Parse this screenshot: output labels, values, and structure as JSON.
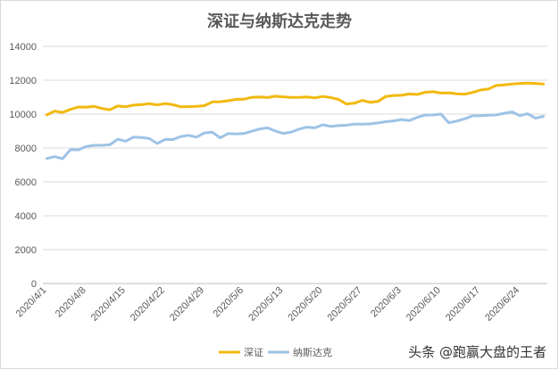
{
  "watermark": "头条 @跑赢大盘的王者",
  "chart_data": {
    "type": "line",
    "title": "深证与纳斯达克走势",
    "xlabel": "",
    "ylabel": "",
    "ylim": [
      0,
      14000
    ],
    "yticks": [
      0,
      2000,
      4000,
      6000,
      8000,
      10000,
      12000,
      14000
    ],
    "grid": true,
    "legend_position": "bottom",
    "x_tick_labels": [
      "2020/4/1",
      "2020/4/8",
      "2020/4/15",
      "2020/4/22",
      "2020/4/29",
      "2020/5/6",
      "2020/5/13",
      "2020/5/20",
      "2020/5/27",
      "2020/6/3",
      "2020/6/10",
      "2020/6/17",
      "2020/6/24"
    ],
    "x": [
      "2020/4/1",
      "2020/4/2",
      "2020/4/3",
      "2020/4/6",
      "2020/4/7",
      "2020/4/8",
      "2020/4/9",
      "2020/4/10",
      "2020/4/13",
      "2020/4/14",
      "2020/4/15",
      "2020/4/16",
      "2020/4/17",
      "2020/4/20",
      "2020/4/21",
      "2020/4/22",
      "2020/4/23",
      "2020/4/24",
      "2020/4/27",
      "2020/4/28",
      "2020/4/29",
      "2020/4/30",
      "2020/5/1",
      "2020/5/4",
      "2020/5/5",
      "2020/5/6",
      "2020/5/7",
      "2020/5/8",
      "2020/5/11",
      "2020/5/12",
      "2020/5/13",
      "2020/5/14",
      "2020/5/15",
      "2020/5/18",
      "2020/5/19",
      "2020/5/20",
      "2020/5/21",
      "2020/5/22",
      "2020/5/25",
      "2020/5/26",
      "2020/5/27",
      "2020/5/28",
      "2020/5/29",
      "2020/6/1",
      "2020/6/2",
      "2020/6/3",
      "2020/6/4",
      "2020/6/5",
      "2020/6/8",
      "2020/6/9",
      "2020/6/10",
      "2020/6/11",
      "2020/6/12",
      "2020/6/15",
      "2020/6/16",
      "2020/6/17",
      "2020/6/18",
      "2020/6/19",
      "2020/6/22",
      "2020/6/23",
      "2020/6/24",
      "2020/6/25",
      "2020/6/26",
      "2020/6/29"
    ],
    "series": [
      {
        "name": "深证",
        "color": "#F2B90F",
        "values": [
          9950,
          10180,
          10100,
          10280,
          10420,
          10410,
          10460,
          10330,
          10260,
          10480,
          10430,
          10530,
          10560,
          10620,
          10540,
          10620,
          10560,
          10430,
          10440,
          10460,
          10500,
          10720,
          10730,
          10790,
          10870,
          10880,
          10990,
          11010,
          10980,
          11060,
          11020,
          10990,
          10990,
          11010,
          10960,
          11040,
          10980,
          10870,
          10600,
          10640,
          10810,
          10700,
          10750,
          11040,
          11100,
          11110,
          11190,
          11160,
          11290,
          11320,
          11240,
          11260,
          11200,
          11180,
          11280,
          11420,
          11480,
          11690,
          11720,
          11780,
          11810,
          11830,
          11810,
          11780
        ]
      },
      {
        "name": "纳斯达克",
        "color": "#9DC3E6",
        "values": [
          7380,
          7490,
          7370,
          7900,
          7890,
          8090,
          8160,
          8160,
          8190,
          8520,
          8400,
          8640,
          8620,
          8560,
          8270,
          8500,
          8500,
          8680,
          8750,
          8640,
          8890,
          8930,
          8600,
          8850,
          8830,
          8850,
          8990,
          9120,
          9190,
          9000,
          8860,
          8940,
          9110,
          9230,
          9190,
          9370,
          9280,
          9320,
          9340,
          9410,
          9410,
          9420,
          9480,
          9550,
          9600,
          9680,
          9620,
          9810,
          9940,
          9950,
          10000,
          9490,
          9590,
          9720,
          9900,
          9910,
          9930,
          9950,
          10050,
          10130,
          9910,
          10020,
          9760,
          9870
        ]
      }
    ]
  }
}
